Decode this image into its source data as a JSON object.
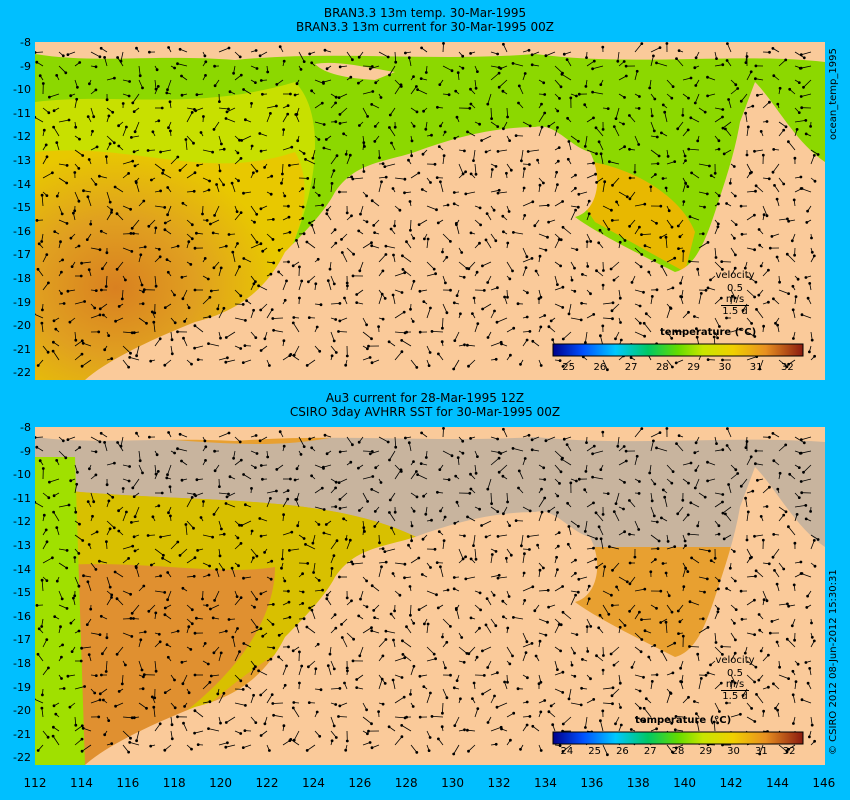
{
  "top_panel": {
    "title_line1": "BRAN3.3 13m temp. 30-Mar-1995",
    "title_line2": "BRAN3.3 13m current for 30-Mar-1995 00Z",
    "side_label": "ocean_temp_1995",
    "colorbar_title": "temperature (°C)",
    "colorbar_ticks": [
      "25",
      "26",
      "27",
      "28",
      "29",
      "30",
      "31",
      "32"
    ],
    "velocity_label": "velocity",
    "velocity_scale": "0.5 m/s",
    "velocity_duration": "1.5 d"
  },
  "bottom_panel": {
    "title_line1": "Au3 current for 28-Mar-1995 12Z",
    "title_line2": "CSIRO 3day AVHRR SST for 30-Mar-1995 00Z",
    "side_label": "© CSIRO 2012  08-Jun-2012 15:30:31",
    "colorbar_title": "temperature (°C)",
    "colorbar_ticks": [
      "24",
      "25",
      "26",
      "27",
      "28",
      "29",
      "30",
      "31",
      "32"
    ],
    "velocity_label": "velocity",
    "velocity_scale": "0.5 m/s",
    "velocity_duration": "1.5 d"
  },
  "y_ticks": [
    "-8",
    "-9",
    "-10",
    "-11",
    "-12",
    "-13",
    "-14",
    "-15",
    "-16",
    "-17",
    "-18",
    "-19",
    "-20",
    "-21",
    "-22"
  ],
  "x_ticks": [
    "112",
    "114",
    "116",
    "118",
    "120",
    "122",
    "124",
    "126",
    "128",
    "130",
    "132",
    "134",
    "136",
    "138",
    "140",
    "142",
    "144",
    "146"
  ],
  "colors": {
    "background": "#00BFFF",
    "land": "#FACA9A",
    "no_data": "#C8B49E",
    "colormap": [
      "#00008B",
      "#0050FF",
      "#00C8FF",
      "#00C864",
      "#64DC00",
      "#C8E600",
      "#F0D000",
      "#E89020",
      "#C06020",
      "#8B1A10"
    ]
  }
}
